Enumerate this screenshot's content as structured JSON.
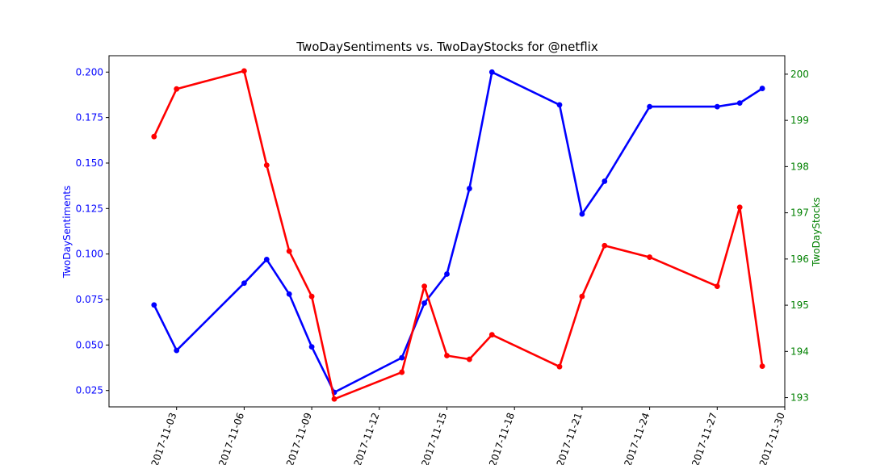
{
  "chart_data": {
    "type": "line",
    "title": "TwoDaySentiments vs. TwoDayStocks for @netflix",
    "xlabel": "",
    "x_ticks": [
      "2017-11-03",
      "2017-11-06",
      "2017-11-09",
      "2017-11-12",
      "2017-11-15",
      "2017-11-18",
      "2017-11-21",
      "2017-11-24",
      "2017-11-27",
      "2017-11-30"
    ],
    "xlim": [
      "2017-10-31",
      "2017-11-30"
    ],
    "grid": false,
    "left_axis": {
      "label": "TwoDaySentiments",
      "color": "#0000ff",
      "ylim": [
        0.016,
        0.209
      ],
      "ticks": [
        0.025,
        0.05,
        0.075,
        0.1,
        0.125,
        0.15,
        0.175,
        0.2
      ],
      "tick_labels": [
        "0.025",
        "0.050",
        "0.075",
        "0.100",
        "0.125",
        "0.150",
        "0.175",
        "0.200"
      ]
    },
    "right_axis": {
      "label": "TwoDayStocks",
      "color": "#008000",
      "ylim": [
        192.8,
        200.4
      ],
      "ticks": [
        193,
        194,
        195,
        196,
        197,
        198,
        199,
        200
      ],
      "tick_labels": [
        "193",
        "194",
        "195",
        "196",
        "197",
        "198",
        "199",
        "200"
      ]
    },
    "series": [
      {
        "axis": "left",
        "color": "#0000ff",
        "x": [
          "2017-11-02",
          "2017-11-03",
          "2017-11-06",
          "2017-11-07",
          "2017-11-08",
          "2017-11-09",
          "2017-11-10",
          "2017-11-13",
          "2017-11-14",
          "2017-11-15",
          "2017-11-16",
          "2017-11-17",
          "2017-11-20",
          "2017-11-21",
          "2017-11-22",
          "2017-11-24",
          "2017-11-27",
          "2017-11-28",
          "2017-11-29"
        ],
        "values": [
          0.072,
          0.047,
          0.084,
          0.097,
          0.078,
          0.049,
          0.024,
          0.043,
          0.073,
          0.089,
          0.136,
          0.2,
          0.182,
          0.122,
          0.14,
          0.181,
          0.181,
          0.183,
          0.191
        ]
      },
      {
        "axis": "right",
        "color": "#ff0000",
        "x": [
          "2017-11-02",
          "2017-11-03",
          "2017-11-06",
          "2017-11-07",
          "2017-11-08",
          "2017-11-09",
          "2017-11-10",
          "2017-11-13",
          "2017-11-14",
          "2017-11-15",
          "2017-11-16",
          "2017-11-17",
          "2017-11-20",
          "2017-11-21",
          "2017-11-22",
          "2017-11-24",
          "2017-11-27",
          "2017-11-28",
          "2017-11-29"
        ],
        "values": [
          198.65,
          199.68,
          200.07,
          198.03,
          196.17,
          195.19,
          192.97,
          193.55,
          195.41,
          193.91,
          193.83,
          194.36,
          193.67,
          195.19,
          196.29,
          196.04,
          195.41,
          197.12,
          193.68
        ]
      }
    ]
  }
}
